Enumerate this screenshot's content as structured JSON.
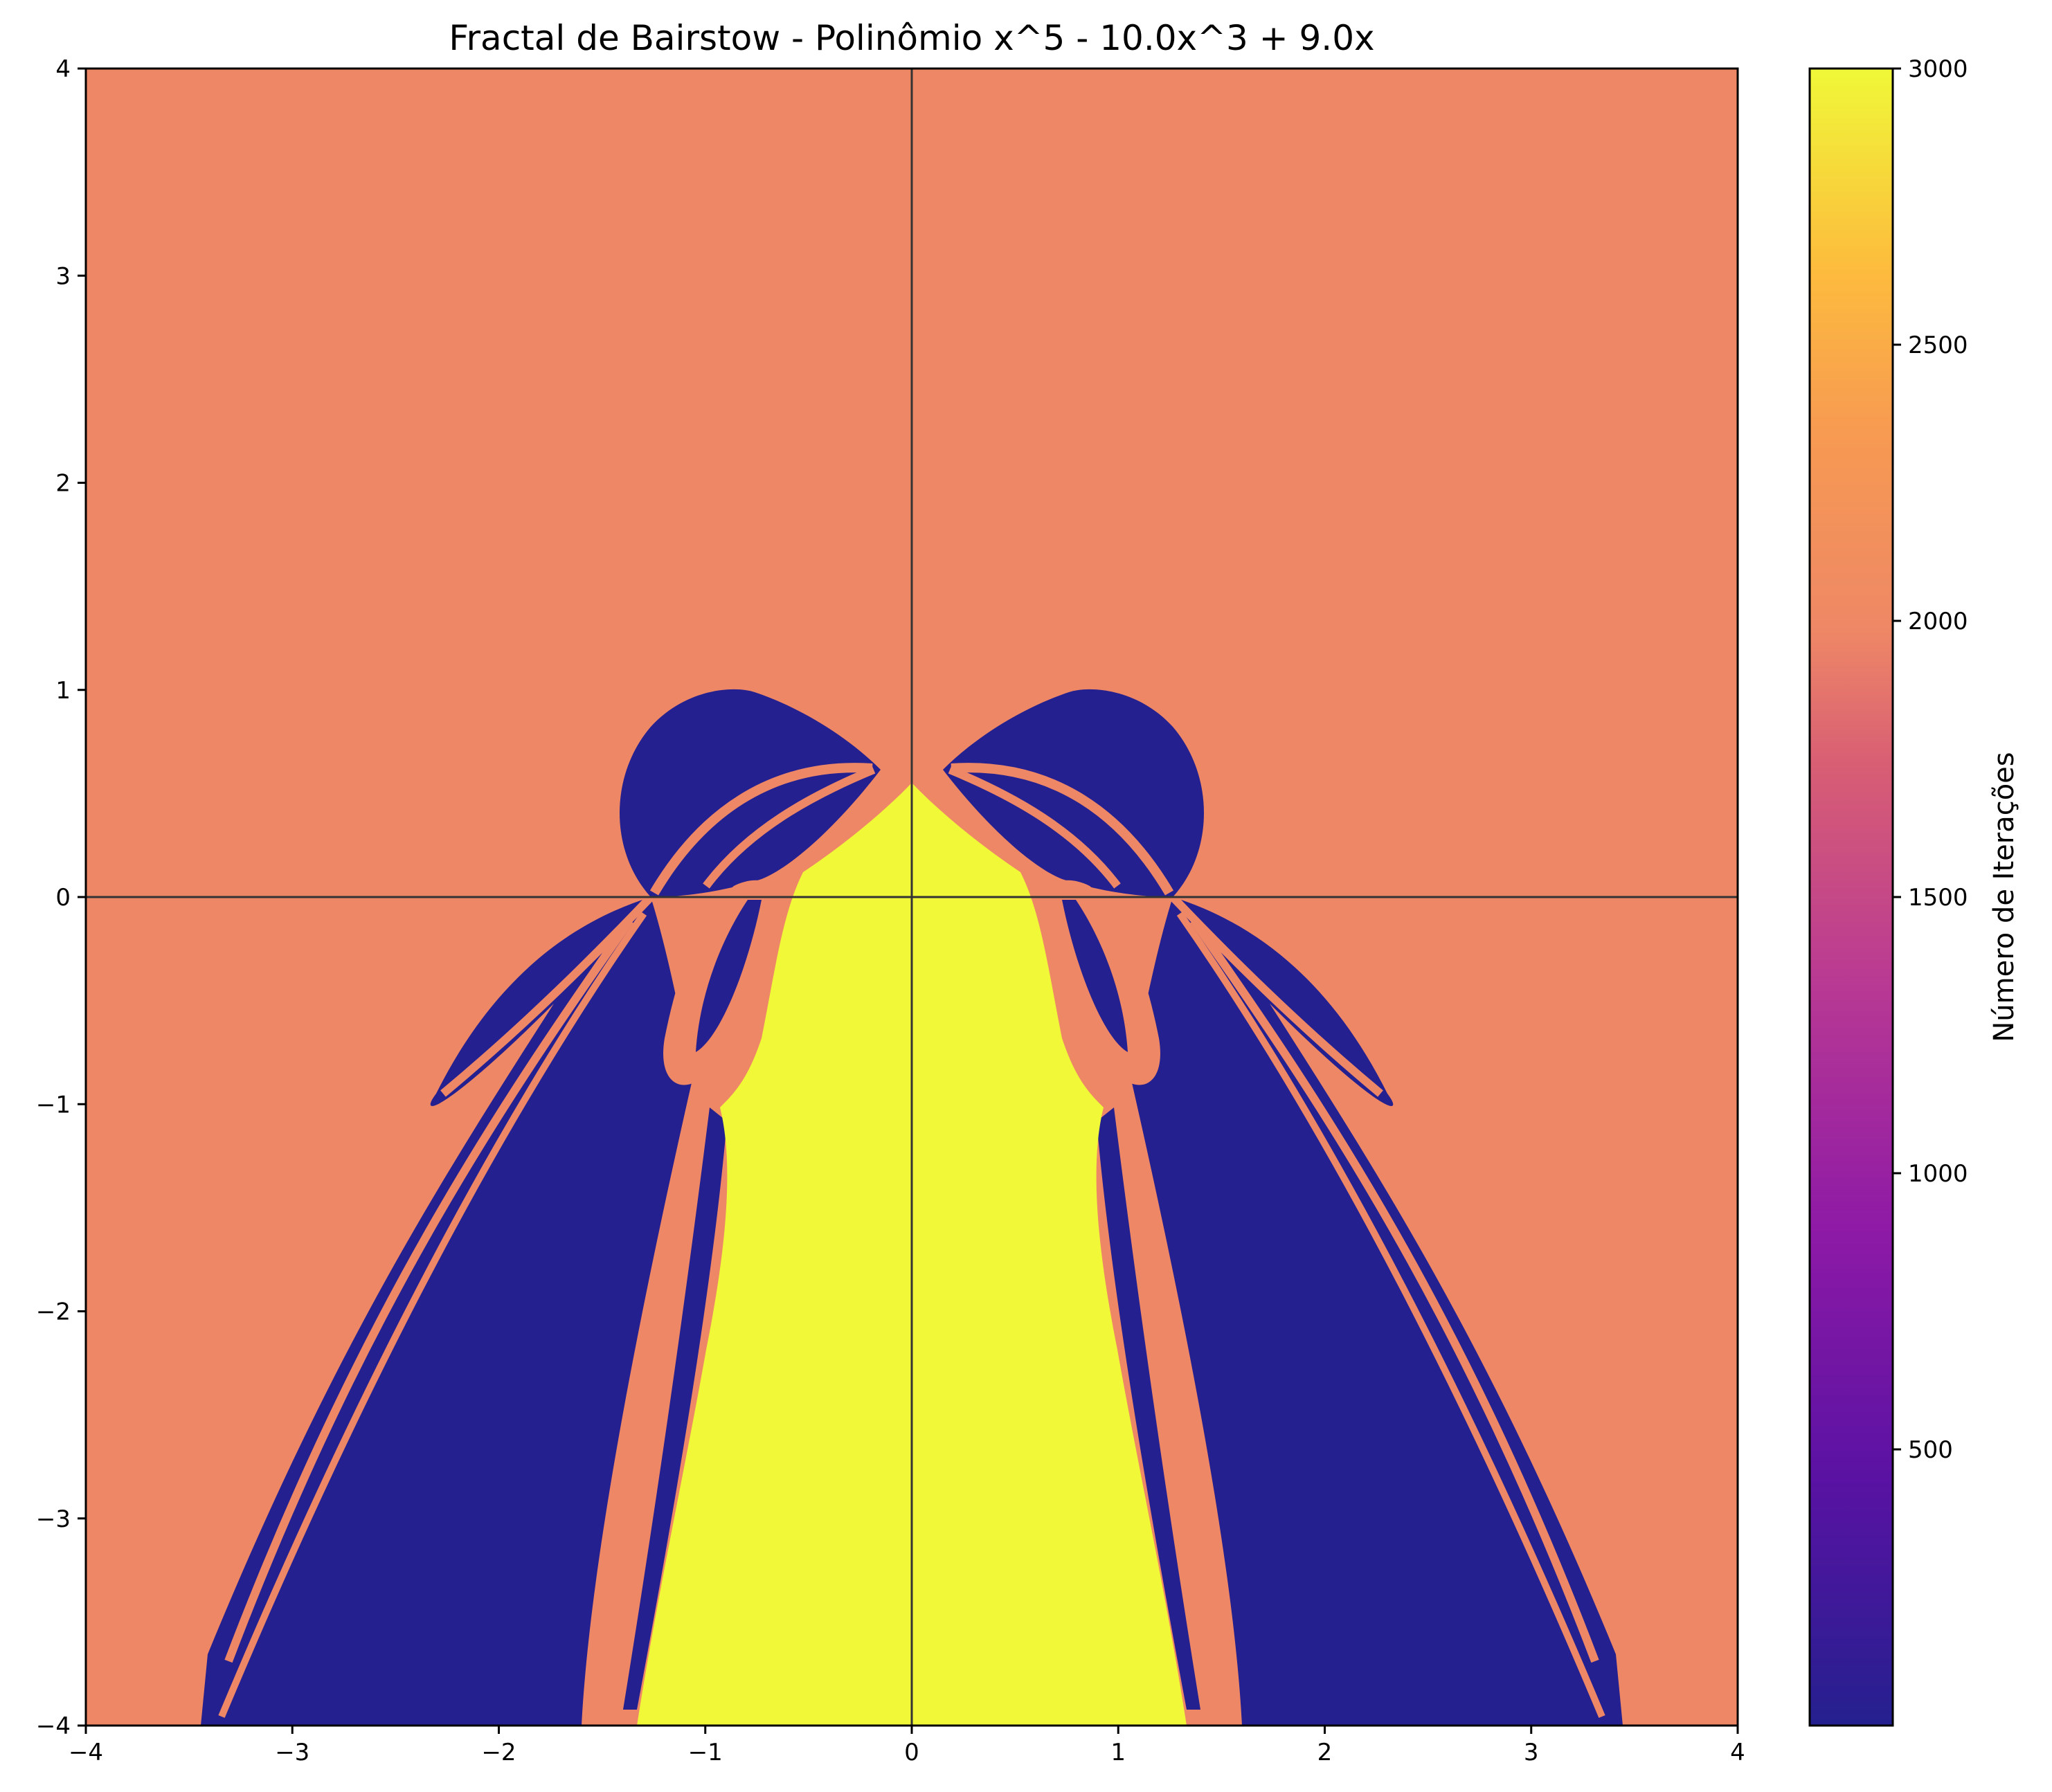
{
  "chart_data": {
    "type": "heatmap",
    "title": "Fractal de Bairstow - Polinômio x^5 - 10.0x^3 + 9.0x",
    "xlabel": "",
    "ylabel": "",
    "xlim": [
      -4,
      4
    ],
    "ylim": [
      -4,
      4
    ],
    "x_ticks": [
      "−4",
      "−3",
      "−2",
      "−1",
      "0",
      "1",
      "2",
      "3",
      "4"
    ],
    "y_ticks": [
      "4",
      "3",
      "2",
      "1",
      "0",
      "−1",
      "−2",
      "−3",
      "−4"
    ],
    "axes_lines": "x=0 and y=0 drawn in dark grey",
    "grid": false,
    "colormap": "plasma",
    "colorbar": {
      "label": "Número de Iterações",
      "range": [
        0,
        3000
      ],
      "ticks": [
        "500",
        "1000",
        "1500",
        "2000",
        "2500",
        "3000"
      ]
    },
    "regions": [
      {
        "name": "background",
        "iterations": 2000,
        "color": "#ee8766"
      },
      {
        "name": "central-basin",
        "iterations": 3000,
        "color": "#f0f838"
      },
      {
        "name": "fast-convergence-lobes",
        "iterations": 50,
        "color": "#24208f"
      }
    ]
  }
}
